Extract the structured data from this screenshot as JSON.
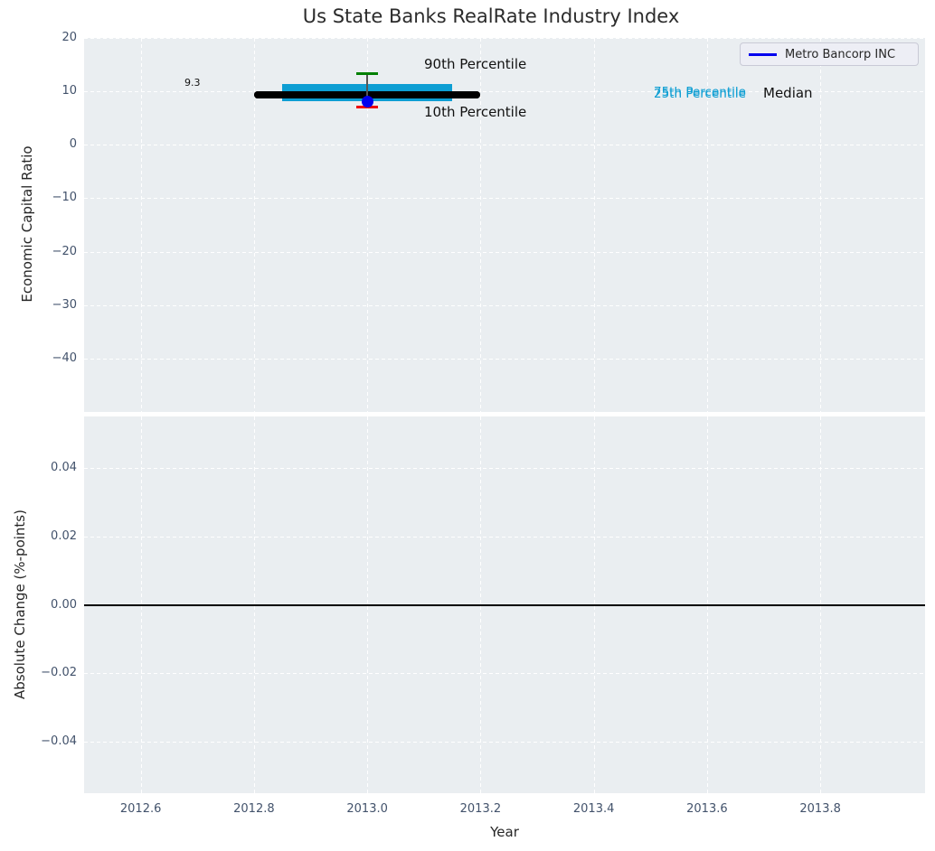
{
  "title": "Us State Banks RealRate Industry Index",
  "legend": {
    "label": "Metro Bancorp INC"
  },
  "axes": {
    "x": {
      "label": "Year",
      "lim": [
        2012.5,
        2013.985
      ],
      "ticks": [
        {
          "v": 2012.6,
          "label": "2012.6"
        },
        {
          "v": 2012.8,
          "label": "2012.8"
        },
        {
          "v": 2013.0,
          "label": "2013.0"
        },
        {
          "v": 2013.2,
          "label": "2013.2"
        },
        {
          "v": 2013.4,
          "label": "2013.4"
        },
        {
          "v": 2013.6,
          "label": "2013.6"
        },
        {
          "v": 2013.8,
          "label": "2013.8"
        }
      ]
    },
    "top_y": {
      "label": "Economic Capital Ratio",
      "lim": [
        -50,
        20
      ],
      "ticks": [
        {
          "v": 20,
          "label": "20"
        },
        {
          "v": 10,
          "label": "10"
        },
        {
          "v": 0,
          "label": "0"
        },
        {
          "v": -10,
          "label": "−10"
        },
        {
          "v": -20,
          "label": "−20"
        },
        {
          "v": -30,
          "label": "−30"
        },
        {
          "v": -40,
          "label": "−40"
        }
      ]
    },
    "bottom_y": {
      "label": "Absolute Change (%-points)",
      "lim": [
        -0.055,
        0.055
      ],
      "ticks": [
        {
          "v": 0.04,
          "label": "0.04"
        },
        {
          "v": 0.02,
          "label": "0.02"
        },
        {
          "v": 0.0,
          "label": "0.00"
        },
        {
          "v": -0.02,
          "label": "−0.02"
        },
        {
          "v": -0.04,
          "label": "−0.04"
        }
      ]
    }
  },
  "annotations": {
    "p90": "90th Percentile",
    "p10": "10th Percentile",
    "p75": "75th Percentile",
    "p25": "25th Percentile",
    "median": "Median",
    "median_value": "9.3"
  },
  "chart_data": [
    {
      "type": "boxplot",
      "panel": "top",
      "title": "Us State Banks RealRate Industry Index",
      "xlabel": "Year",
      "ylabel": "Economic Capital Ratio",
      "xlim": [
        2012.5,
        2013.985
      ],
      "ylim": [
        -50,
        20
      ],
      "grid": true,
      "legend_position": "upper right",
      "industry_index": {
        "x": 2013.0,
        "median": 9.3,
        "median_x_span": [
          2012.8,
          2013.2
        ],
        "p25": 8.1,
        "p75": 11.3,
        "box_x_span": [
          2012.85,
          2013.15
        ],
        "p10": 7.1,
        "p90": 13.3
      },
      "series": [
        {
          "name": "Metro Bancorp INC",
          "points": [
            {
              "x": 2013.0,
              "y": 8.0
            }
          ]
        }
      ]
    },
    {
      "type": "line",
      "panel": "bottom",
      "xlabel": "Year",
      "ylabel": "Absolute Change (%-points)",
      "xlim": [
        2012.5,
        2013.985
      ],
      "ylim": [
        -0.055,
        0.055
      ],
      "grid": true,
      "zero_line": 0.0,
      "series": []
    }
  ],
  "colors": {
    "box": "#0d9ed3",
    "median_line": "#000000",
    "p90_cap": "#008000",
    "p10_cap": "#ee0000",
    "whisker": "#555555",
    "company_dot": "#0000ee",
    "legend_line": "#0000ee",
    "zero_line": "#000000",
    "plot_bg": "#eaeef1",
    "grid": "#ffffff",
    "tick_text": "#42526b",
    "text": "#262626"
  }
}
